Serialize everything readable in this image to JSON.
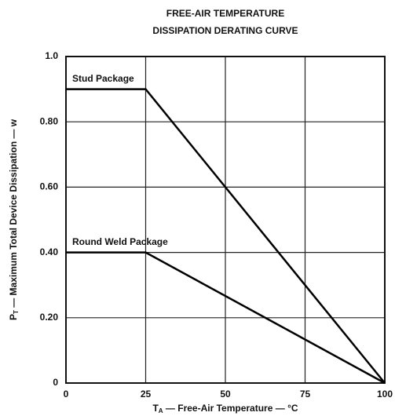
{
  "chart_data": {
    "type": "line",
    "title": [
      "FREE-AIR TEMPERATURE",
      "DISSIPATION DERATING CURVE"
    ],
    "x_label": {
      "symbol": "T",
      "subscript": "A",
      "text": " — Free-Air Temperature — °C"
    },
    "y_label": {
      "symbol": "P",
      "subscript": "T",
      "text": " — Maximum Total Device Dissipation — w"
    },
    "xlim": [
      0,
      100
    ],
    "ylim": [
      0,
      1
    ],
    "xticks": [
      0,
      25,
      50,
      75,
      100
    ],
    "yticks": [
      0,
      {
        "value": 0.2,
        "label": "0.20"
      },
      {
        "value": 0.4,
        "label": "0.40"
      },
      {
        "value": 0.6,
        "label": "0.60"
      },
      {
        "value": 0.8,
        "label": "0.80"
      },
      {
        "value": 1,
        "label": "1.0"
      }
    ],
    "grid": true,
    "series": [
      {
        "name": "Stud Package",
        "color": "#000000",
        "x": [
          0,
          25,
          100
        ],
        "values": [
          0.9,
          0.9,
          0
        ]
      },
      {
        "name": "Round Weld Package",
        "color": "#000000",
        "x": [
          0,
          25,
          100
        ],
        "values": [
          0.4,
          0.4,
          0
        ]
      }
    ]
  }
}
